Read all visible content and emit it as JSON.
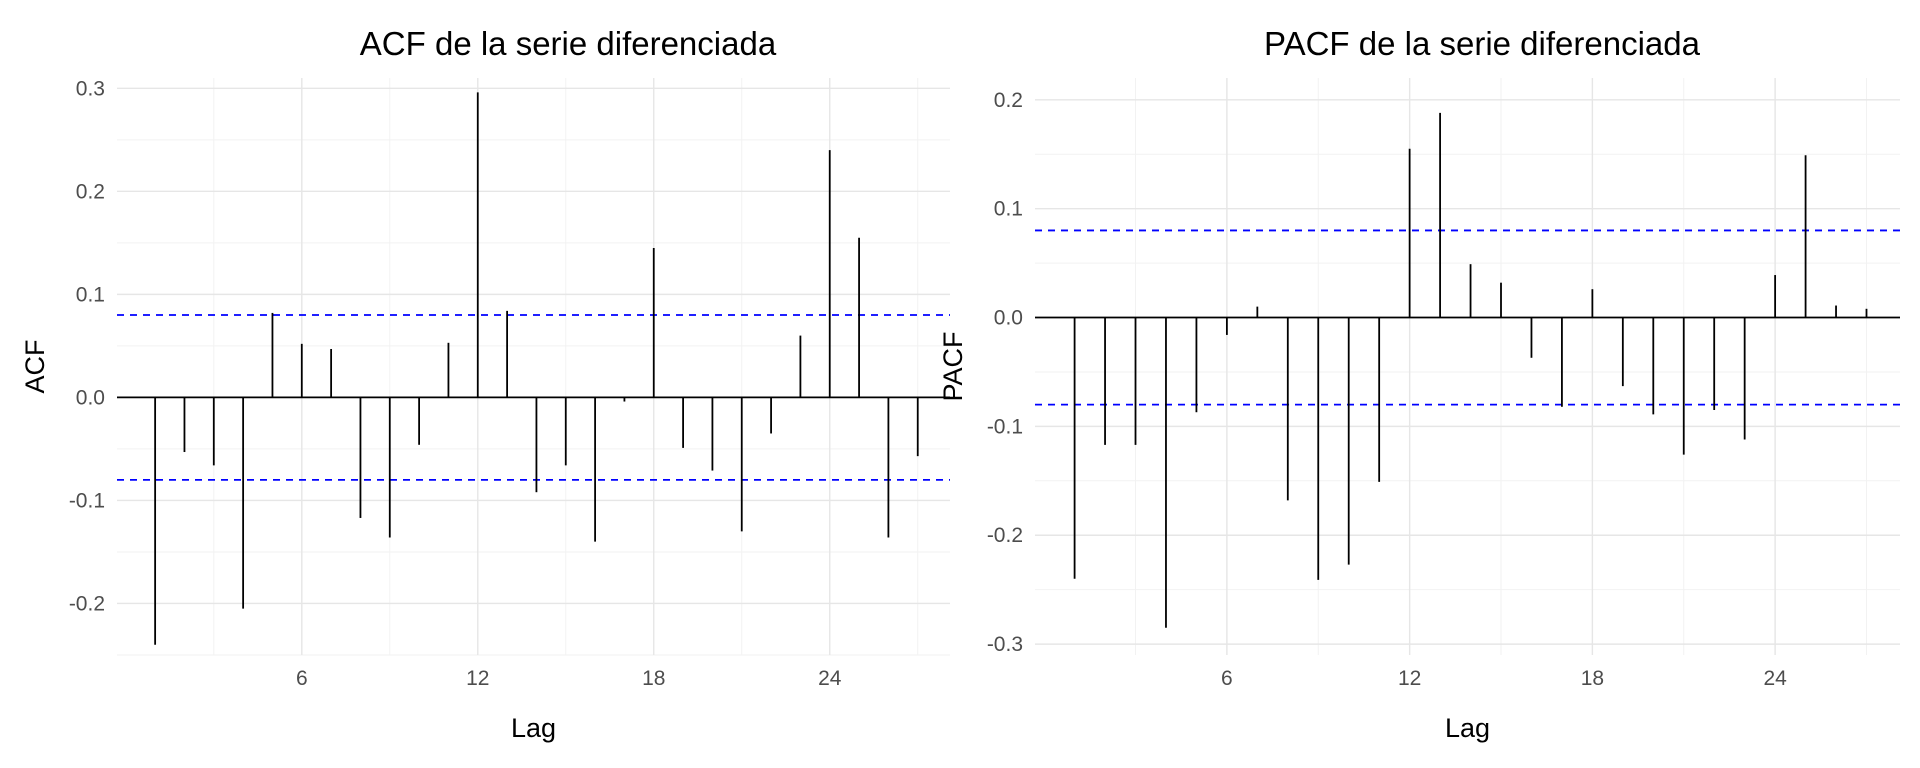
{
  "chart_data": [
    {
      "type": "bar",
      "title": "ACF de la serie diferenciada",
      "xlabel": "Lag",
      "ylabel": "ACF",
      "x": [
        1,
        2,
        3,
        4,
        5,
        6,
        7,
        8,
        9,
        10,
        11,
        12,
        13,
        14,
        15,
        16,
        17,
        18,
        19,
        20,
        21,
        22,
        23,
        24,
        25,
        26,
        27
      ],
      "values": [
        -0.24,
        -0.053,
        -0.066,
        -0.205,
        0.082,
        0.052,
        0.047,
        -0.117,
        -0.136,
        -0.046,
        0.053,
        0.296,
        0.084,
        -0.092,
        -0.066,
        -0.14,
        -0.004,
        0.145,
        -0.049,
        -0.071,
        -0.13,
        -0.035,
        0.06,
        0.24,
        0.155,
        -0.136,
        -0.057
      ],
      "ci": [
        0.08,
        -0.08
      ],
      "xlim": [
        -0.3,
        28.1
      ],
      "ylim": [
        -0.25,
        0.31
      ],
      "xticks": [
        6,
        12,
        18,
        24
      ],
      "yticks": [
        -0.2,
        -0.1,
        0.0,
        0.1,
        0.2,
        0.3
      ],
      "ytick_labels": [
        "-0.2",
        "-0.1",
        "0.0",
        "0.1",
        "0.2",
        "0.3"
      ],
      "grid": true
    },
    {
      "type": "bar",
      "title": "PACF de la serie diferenciada",
      "xlabel": "Lag",
      "ylabel": "PACF",
      "x": [
        1,
        2,
        3,
        4,
        5,
        6,
        7,
        8,
        9,
        10,
        11,
        12,
        13,
        14,
        15,
        16,
        17,
        18,
        19,
        20,
        21,
        22,
        23,
        24,
        25,
        26,
        27
      ],
      "values": [
        -0.24,
        -0.117,
        -0.117,
        -0.285,
        -0.087,
        -0.016,
        0.01,
        -0.168,
        -0.241,
        -0.227,
        -0.151,
        0.155,
        0.188,
        0.049,
        0.032,
        -0.037,
        -0.082,
        0.026,
        -0.063,
        -0.089,
        -0.126,
        -0.085,
        -0.112,
        0.039,
        0.149,
        0.011,
        0.008
      ],
      "ci": [
        0.08,
        -0.08
      ],
      "xlim": [
        -0.3,
        28.1
      ],
      "ylim": [
        -0.31,
        0.22
      ],
      "xticks": [
        6,
        12,
        18,
        24
      ],
      "yticks": [
        -0.3,
        -0.2,
        -0.1,
        0.0,
        0.1,
        0.2
      ],
      "ytick_labels": [
        "-0.3",
        "-0.2",
        "-0.1",
        "0.0",
        "0.1",
        "0.2"
      ],
      "grid": true
    }
  ]
}
